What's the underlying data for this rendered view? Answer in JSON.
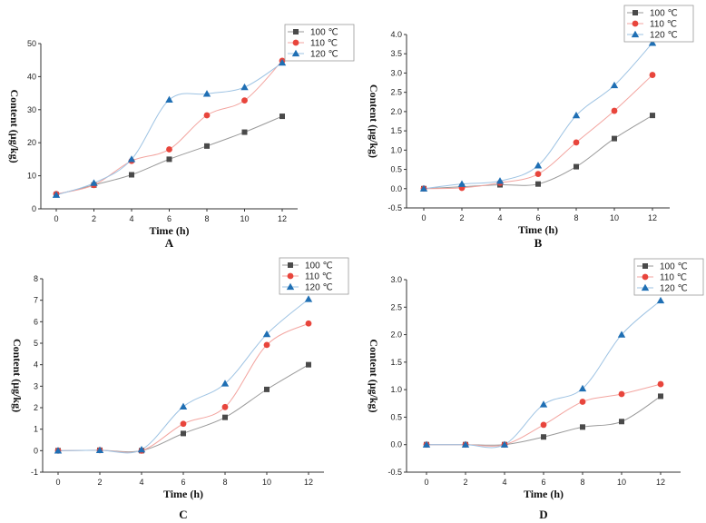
{
  "colors": {
    "s100": "#4a4a4a",
    "s110": "#e8453c",
    "s120": "#1f6fb4",
    "line100": "#9a9a9a",
    "line110": "#f3a5a0",
    "line120": "#9ec3e3"
  },
  "chart_data": [
    {
      "type": "line",
      "panel": "A",
      "xlabel": "Time (h)",
      "ylabel": "Content (μg/kg)",
      "x": [
        0,
        2,
        4,
        6,
        8,
        10,
        12
      ],
      "x_ticks": [
        "0",
        "2",
        "4",
        "6",
        "8",
        "10",
        "12"
      ],
      "ylim": [
        0,
        50
      ],
      "y_ticks": [
        "0",
        "10",
        "20",
        "30",
        "40",
        "50"
      ],
      "legend_position": "top-right",
      "series": [
        {
          "name": "100  ℃",
          "marker": "square",
          "values": [
            4.3,
            7.2,
            10.3,
            15.0,
            19.0,
            23.2,
            28.0
          ]
        },
        {
          "name": "110  ℃",
          "marker": "circle",
          "values": [
            4.5,
            7.2,
            14.5,
            18.0,
            28.3,
            32.8,
            44.8
          ]
        },
        {
          "name": "120  ℃",
          "marker": "triangle",
          "values": [
            4.2,
            7.8,
            15.0,
            33.0,
            34.8,
            36.8,
            44.2
          ]
        }
      ]
    },
    {
      "type": "line",
      "panel": "B",
      "xlabel": "Time (h)",
      "ylabel": "Content (μg/kg)",
      "x": [
        0,
        2,
        4,
        6,
        8,
        10,
        12
      ],
      "x_ticks": [
        "0",
        "2",
        "4",
        "6",
        "8",
        "10",
        "12"
      ],
      "ylim": [
        -0.5,
        4.0
      ],
      "y_ticks": [
        "-0.5",
        "0.0",
        "0.5",
        "1.0",
        "1.5",
        "2.0",
        "2.5",
        "3.0",
        "3.5",
        "4.0"
      ],
      "legend_position": "top-right",
      "series": [
        {
          "name": "100  ℃",
          "marker": "square",
          "values": [
            0.0,
            0.05,
            0.1,
            0.12,
            0.57,
            1.3,
            1.9
          ]
        },
        {
          "name": "110  ℃",
          "marker": "circle",
          "values": [
            0.0,
            0.02,
            0.15,
            0.38,
            1.2,
            2.02,
            2.95
          ]
        },
        {
          "name": "120  ℃",
          "marker": "triangle",
          "values": [
            0.0,
            0.12,
            0.2,
            0.6,
            1.9,
            2.68,
            3.78
          ]
        }
      ]
    },
    {
      "type": "line",
      "panel": "C",
      "xlabel": "Time (h)",
      "ylabel": "Content (μg/kg)",
      "x": [
        0,
        2,
        4,
        6,
        8,
        10,
        12
      ],
      "x_ticks": [
        "0",
        "2",
        "4",
        "6",
        "8",
        "10",
        "12"
      ],
      "ylim": [
        -1,
        8
      ],
      "y_ticks": [
        "-1",
        "0",
        "1",
        "2",
        "3",
        "4",
        "5",
        "6",
        "7",
        "8"
      ],
      "legend_position": "top-right",
      "series": [
        {
          "name": "100  ℃",
          "marker": "square",
          "values": [
            0.0,
            0.02,
            0.0,
            0.8,
            1.55,
            2.85,
            4.0
          ]
        },
        {
          "name": "110  ℃",
          "marker": "circle",
          "values": [
            0.0,
            0.02,
            0.0,
            1.25,
            2.03,
            4.92,
            5.92
          ]
        },
        {
          "name": "120  ℃",
          "marker": "triangle",
          "values": [
            0.0,
            0.02,
            0.05,
            2.05,
            3.12,
            5.42,
            7.05
          ]
        }
      ]
    },
    {
      "type": "line",
      "panel": "D",
      "xlabel": "Time (h)",
      "ylabel": "Content (μg/kg)",
      "x": [
        0,
        2,
        4,
        6,
        8,
        10,
        12
      ],
      "x_ticks": [
        "0",
        "2",
        "4",
        "6",
        "8",
        "10",
        "12"
      ],
      "ylim": [
        -0.5,
        3.0
      ],
      "y_ticks": [
        "-0.5",
        "0.0",
        "0.5",
        "1.0",
        "1.5",
        "2.0",
        "2.5",
        "3.0"
      ],
      "legend_position": "top-right",
      "series": [
        {
          "name": "100  ℃",
          "marker": "square",
          "values": [
            0.0,
            0.0,
            0.0,
            0.14,
            0.32,
            0.42,
            0.88
          ]
        },
        {
          "name": "110  ℃",
          "marker": "circle",
          "values": [
            0.0,
            0.0,
            0.0,
            0.36,
            0.78,
            0.92,
            1.1
          ]
        },
        {
          "name": "120  ℃",
          "marker": "triangle",
          "values": [
            0.0,
            0.0,
            0.0,
            0.73,
            1.02,
            2.0,
            2.62
          ]
        }
      ]
    }
  ]
}
